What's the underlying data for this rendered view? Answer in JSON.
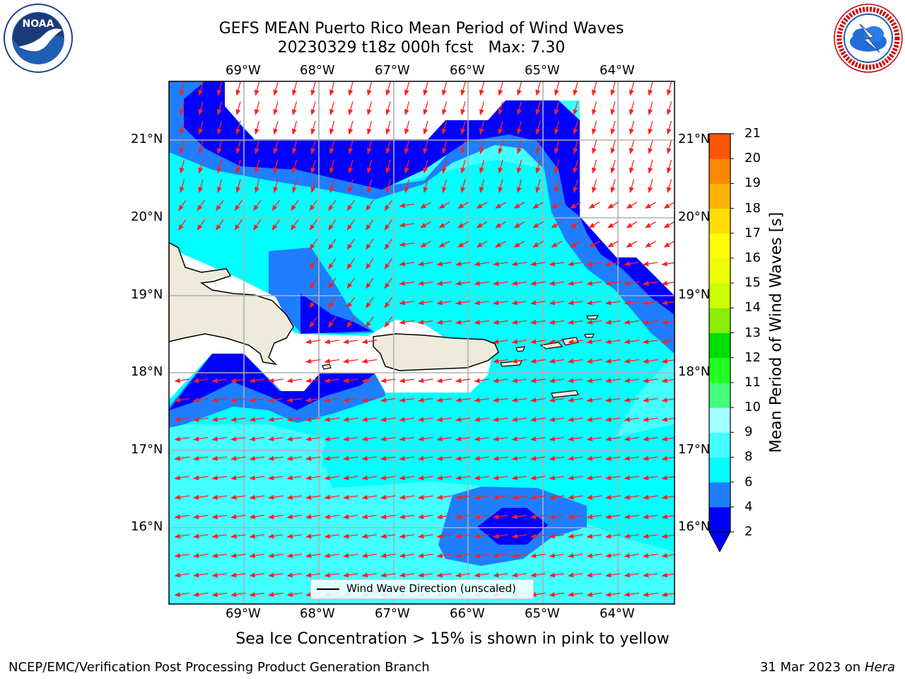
{
  "title": {
    "line1": "GEFS MEAN Puerto Rico Mean Period of Wind Waves",
    "line2": "20230329 t18z 000h fcst   Max: 7.30"
  },
  "logos": {
    "left": {
      "icon": "noaa-logo",
      "text": "NOAA",
      "ring_text": "NATIONAL OCEANIC AND ATMOSPHERIC ADMINISTRATION · U.S. DEPARTMENT OF COMMERCE"
    },
    "right": {
      "icon": "national-weather-service-logo",
      "ring_text": "NATIONAL WEATHER SERVICE"
    }
  },
  "map": {
    "lon_labels": [
      "69°W",
      "68°W",
      "67°W",
      "66°W",
      "65°W",
      "64°W"
    ],
    "lat_labels": [
      "21°N",
      "20°N",
      "19°N",
      "18°N",
      "17°N",
      "16°N"
    ],
    "land_color": "#efebdc",
    "arrow_color": "#ff0000",
    "gridlines": true
  },
  "legend": {
    "label": "Wind Wave Direction (unscaled)"
  },
  "colorbar": {
    "title": "Mean Period of Wind Waves [s]",
    "ticks": [
      "2",
      "4",
      "6",
      "8",
      "9",
      "10",
      "11",
      "12",
      "13",
      "14",
      "15",
      "16",
      "17",
      "18",
      "19",
      "20",
      "21"
    ],
    "colors": [
      "#0000ff",
      "#1e7eff",
      "#00ffff",
      "#44ffff",
      "#a2ffff",
      "#44ff7a",
      "#22ff22",
      "#00dd00",
      "#88ee00",
      "#ccff00",
      "#eeff00",
      "#ffff00",
      "#ffdd00",
      "#ffb300",
      "#ff8800",
      "#ff5500",
      "#ff2200",
      "#ff0000"
    ],
    "extend_min": true
  },
  "note": "Sea Ice Concentration > 15% is shown in pink to yellow",
  "footer": {
    "left": "NCEP/EMC/Verification Post Processing Product Generation Branch",
    "right_date": "31 Mar 2023 on",
    "right_host": "Hera"
  }
}
